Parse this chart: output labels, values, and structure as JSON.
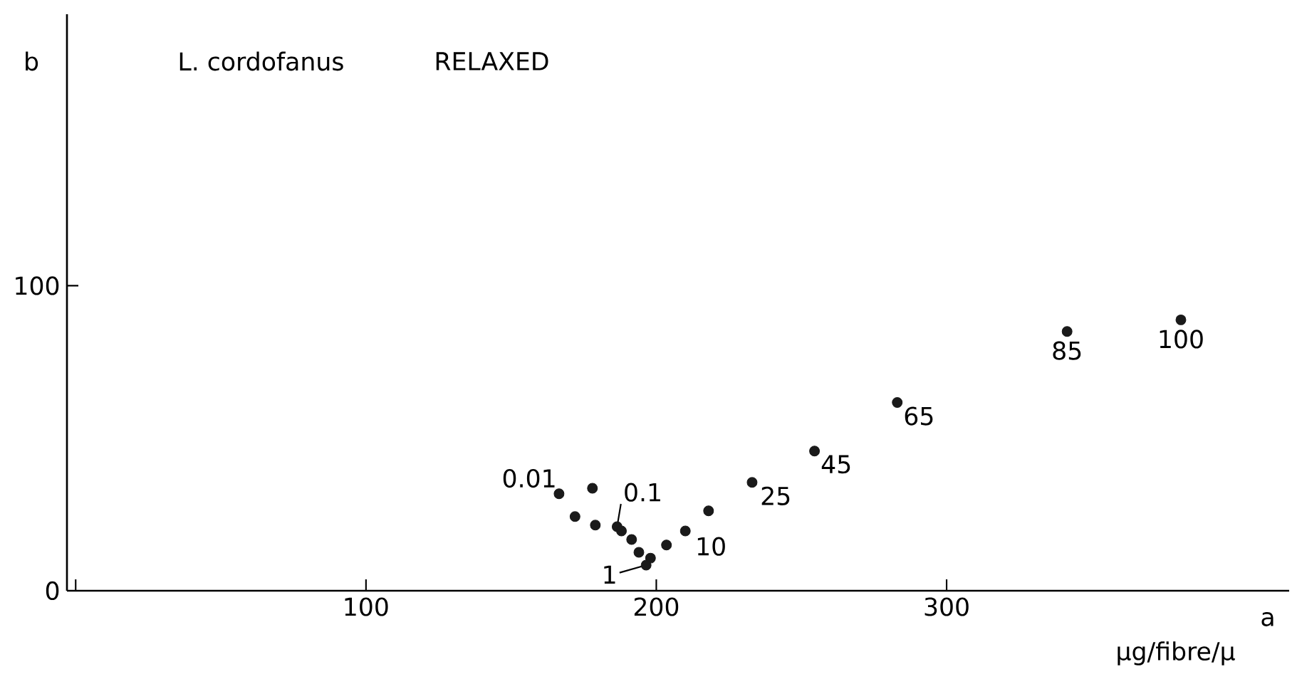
{
  "chart_data": {
    "type": "scatter",
    "title": "L. cordofanus",
    "subtitle": "RELAXED",
    "xlabel": "a",
    "ylabel": "b",
    "x": [
      166.5,
      178,
      172,
      179,
      186.5,
      188,
      191.5,
      194,
      198,
      196.5,
      203.5,
      210,
      218,
      233,
      254.5,
      283,
      341.5,
      380.7
    ],
    "values": [
      31.8,
      33.6,
      24.3,
      21.5,
      21,
      19.6,
      16.8,
      12.6,
      10.7,
      8.4,
      15,
      19.6,
      26.2,
      35.5,
      45.8,
      61.7,
      85,
      88.8
    ],
    "color": "#1a1a1a",
    "marker": "circle",
    "xlim": [
      -3,
      418
    ],
    "ylim": [
      0,
      189
    ],
    "xticks": [
      {
        "value": 0,
        "label": null
      },
      100,
      200,
      300
    ],
    "yticks": [
      0,
      100
    ],
    "annotations": [
      {
        "text": "0.01",
        "x": 166.5,
        "y": 31.8
      },
      {
        "text": "0.1",
        "x": 186.5,
        "y": 21
      },
      {
        "text": "1",
        "x": 196.5,
        "y": 8.4
      },
      {
        "text": "10",
        "x": 210,
        "y": 19.6
      },
      {
        "text": "25",
        "x": 233,
        "y": 35.5
      },
      {
        "text": "45",
        "x": 254.5,
        "y": 45.8
      },
      {
        "text": "65",
        "x": 283,
        "y": 61.7
      },
      {
        "text": "85",
        "x": 341.5,
        "y": 85
      },
      {
        "text": "100",
        "x": 380.7,
        "y": 88.8
      },
      "µg/fibre/µ"
    ]
  }
}
